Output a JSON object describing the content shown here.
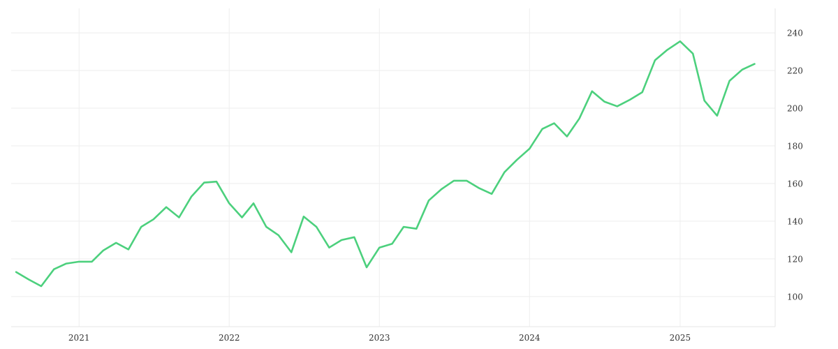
{
  "chart_data": {
    "type": "line",
    "title": "",
    "xlabel": "",
    "ylabel": "",
    "x_tick_labels": [
      "2021",
      "2022",
      "2023",
      "2024",
      "2025"
    ],
    "y_ticks": [
      100,
      120,
      140,
      160,
      180,
      200,
      220,
      240
    ],
    "ylim": [
      84,
      253
    ],
    "xlim": [
      "2020-07-20",
      "2025-08-20"
    ],
    "y_axis_side": "right",
    "grid": true,
    "legend": "none",
    "series": [
      {
        "color": "#4cd07d",
        "x": [
          "2020-08-01",
          "2020-09-01",
          "2020-10-01",
          "2020-11-01",
          "2020-12-01",
          "2021-01-01",
          "2021-02-01",
          "2021-03-01",
          "2021-04-01",
          "2021-05-01",
          "2021-06-01",
          "2021-07-01",
          "2021-08-01",
          "2021-09-01",
          "2021-10-01",
          "2021-11-01",
          "2021-12-01",
          "2022-01-01",
          "2022-02-01",
          "2022-03-01",
          "2022-04-01",
          "2022-05-01",
          "2022-06-01",
          "2022-07-01",
          "2022-08-01",
          "2022-09-01",
          "2022-10-01",
          "2022-11-01",
          "2022-12-01",
          "2023-01-01",
          "2023-02-01",
          "2023-03-01",
          "2023-04-01",
          "2023-05-01",
          "2023-06-01",
          "2023-07-01",
          "2023-08-01",
          "2023-09-01",
          "2023-10-01",
          "2023-11-01",
          "2023-12-01",
          "2024-01-01",
          "2024-02-01",
          "2024-03-01",
          "2024-04-01",
          "2024-05-01",
          "2024-06-01",
          "2024-07-01",
          "2024-08-01",
          "2024-09-01",
          "2024-10-01",
          "2024-11-01",
          "2024-12-01",
          "2025-01-01",
          "2025-02-01",
          "2025-03-01",
          "2025-04-01",
          "2025-05-01",
          "2025-06-01",
          "2025-07-01"
        ],
        "values": [
          113,
          109,
          105.5,
          114.5,
          117.5,
          118.5,
          118.5,
          124.5,
          128.5,
          125,
          137,
          141,
          147.5,
          142,
          153,
          160.5,
          161,
          149.5,
          142,
          149.5,
          137,
          132.5,
          123.5,
          142.5,
          137,
          126,
          130,
          131.5,
          115.5,
          126,
          128,
          137,
          136,
          151,
          157,
          161.5,
          161.5,
          157.5,
          154.5,
          166,
          172.5,
          178.5,
          189,
          192,
          185,
          194.5,
          209,
          203.5,
          201,
          204.5,
          208.5,
          225.5,
          231,
          235.5,
          229,
          204,
          196,
          214.5,
          220.5,
          223.5
        ]
      }
    ]
  }
}
